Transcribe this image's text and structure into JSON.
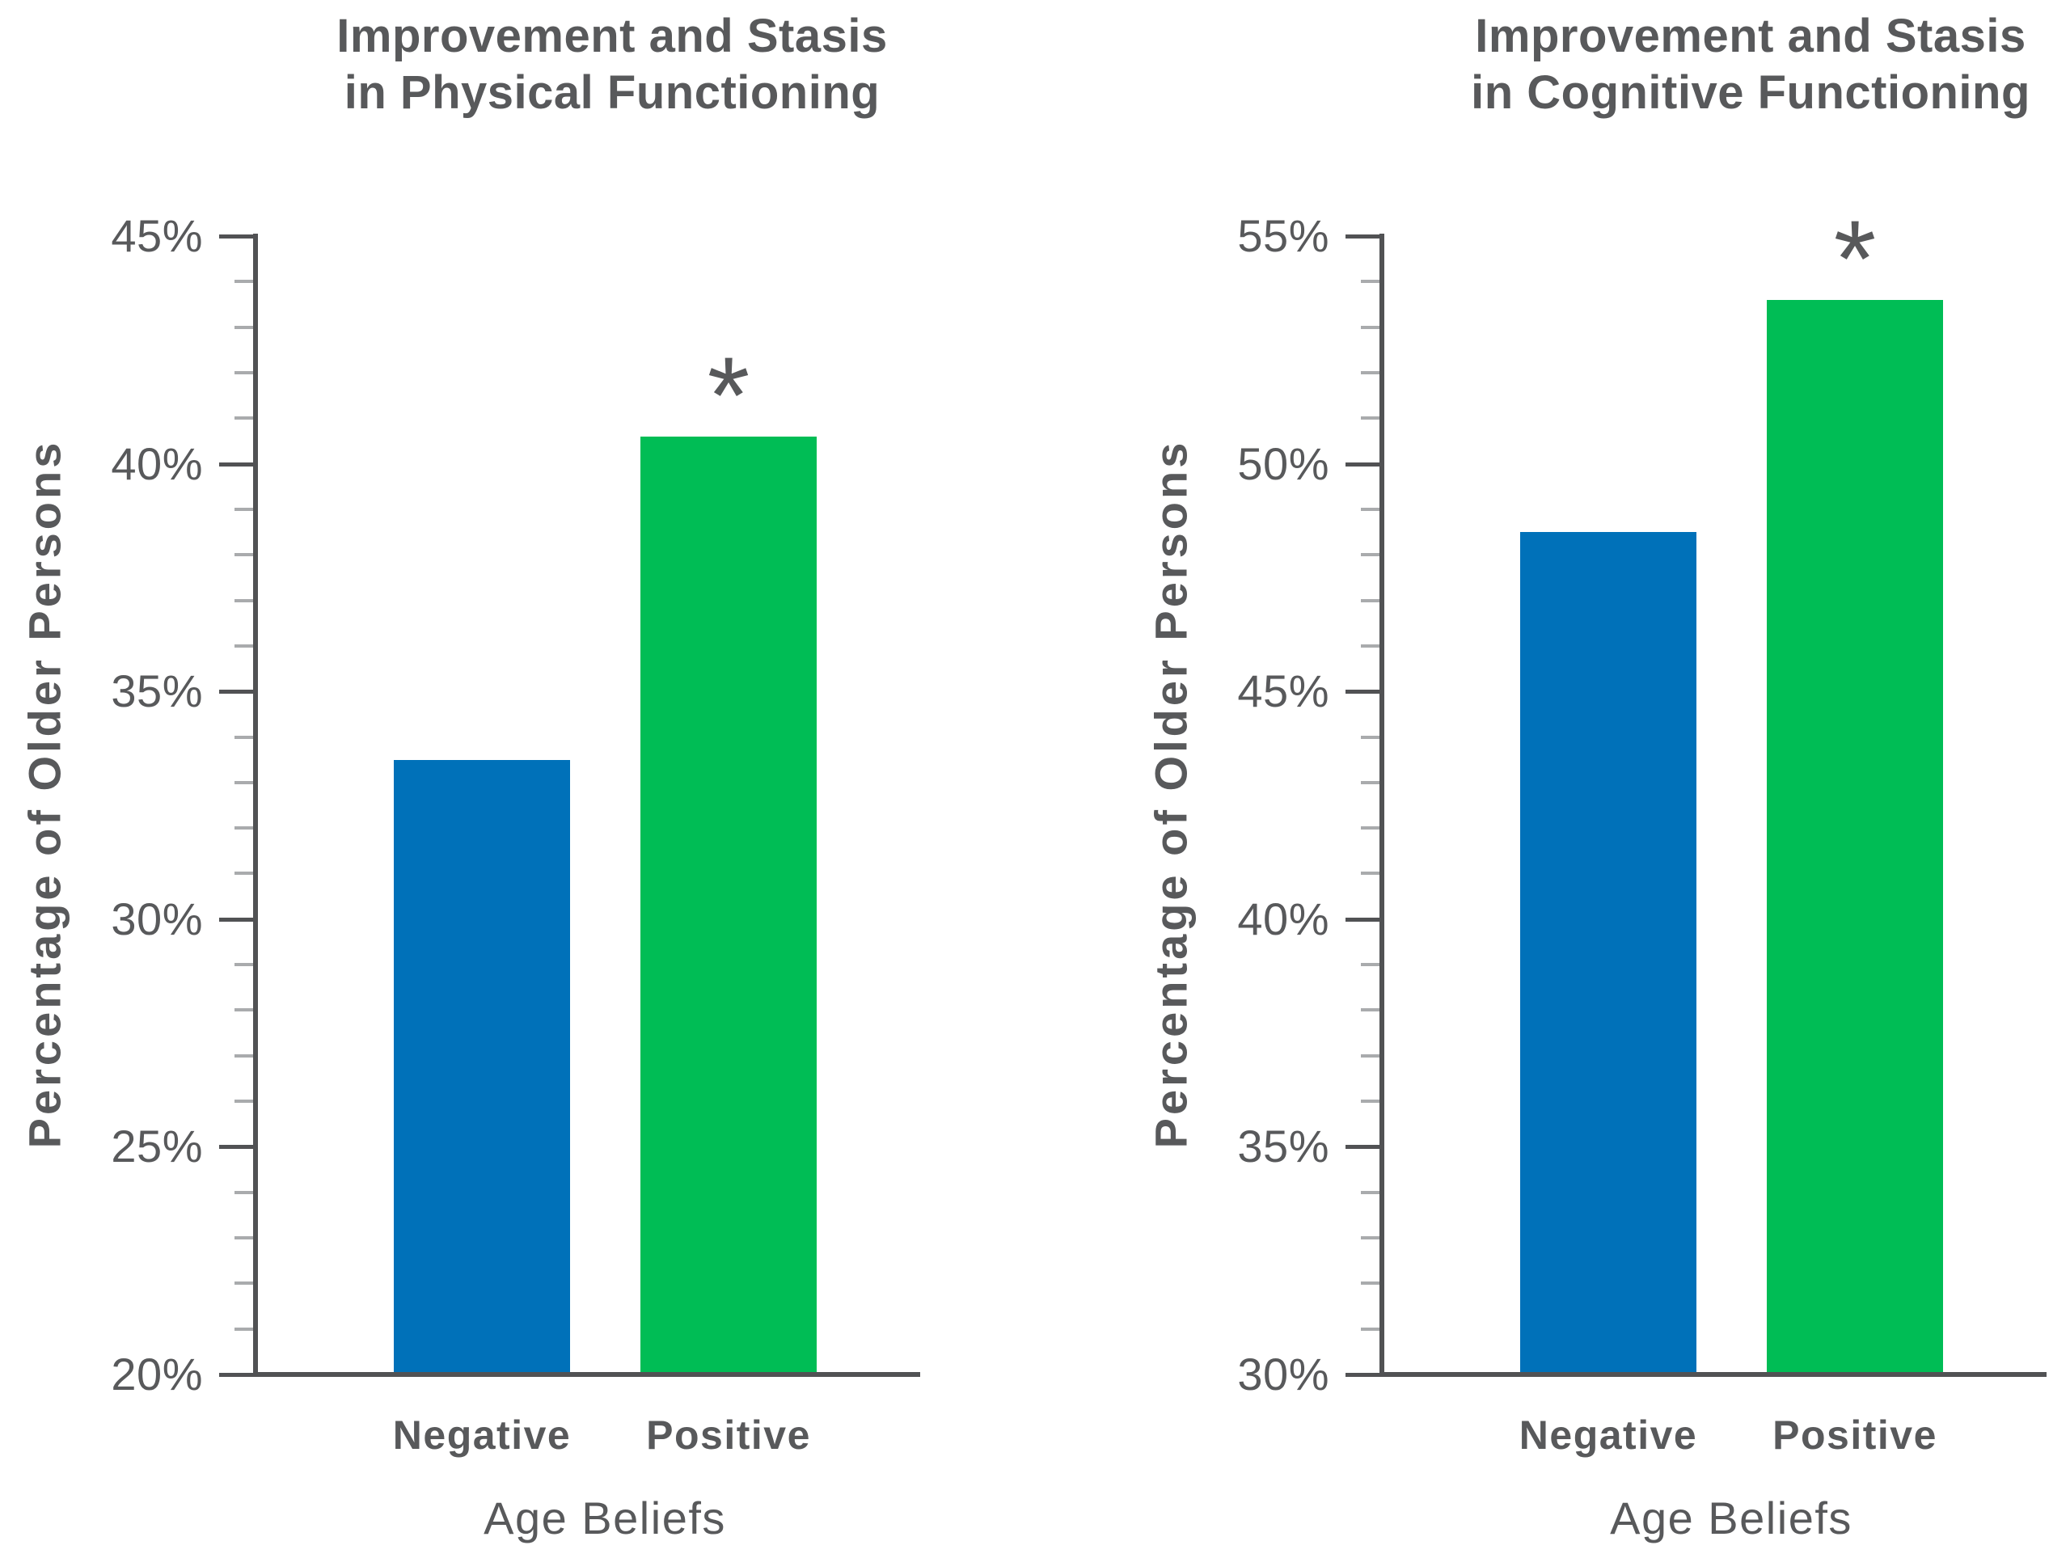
{
  "page": {
    "background_color": "#ffffff",
    "text_color": "#58595b",
    "axis_color": "#515254",
    "minor_tick_color": "#a9abad"
  },
  "chart_data": [
    {
      "type": "bar",
      "title": "Improvement and Stasis in Physical Functioning",
      "title_lines": [
        "Improvement and Stasis",
        "in Physical Functioning"
      ],
      "ylabel": "Percentage of Older Persons",
      "xlabel": "Age Beliefs",
      "categories": [
        "Negative",
        "Positive"
      ],
      "values": [
        33.5,
        40.6
      ],
      "bar_colors": [
        "#0071b9",
        "#00bd55"
      ],
      "ylim": [
        20,
        45
      ],
      "ytick_interval": 5,
      "minor_tick_interval": 1,
      "ytick_labels": [
        "45%",
        "40%",
        "35%",
        "30%",
        "25%",
        "20%"
      ],
      "annotations": [
        {
          "text": "*",
          "category": "Positive"
        }
      ],
      "grid": false,
      "legend": false
    },
    {
      "type": "bar",
      "title": "Improvement and Stasis in Cognitive Functioning",
      "title_lines": [
        "Improvement and Stasis",
        "in Cognitive Functioning"
      ],
      "ylabel": "Percentage of Older Persons",
      "xlabel": "Age Beliefs",
      "categories": [
        "Negative",
        "Positive"
      ],
      "values": [
        48.5,
        53.6
      ],
      "bar_colors": [
        "#0071b9",
        "#00bd55"
      ],
      "ylim": [
        30,
        55
      ],
      "ytick_interval": 5,
      "minor_tick_interval": 1,
      "ytick_labels": [
        "55%",
        "50%",
        "45%",
        "40%",
        "35%",
        "30%"
      ],
      "annotations": [
        {
          "text": "*",
          "category": "Positive"
        }
      ],
      "grid": false,
      "legend": false
    }
  ]
}
